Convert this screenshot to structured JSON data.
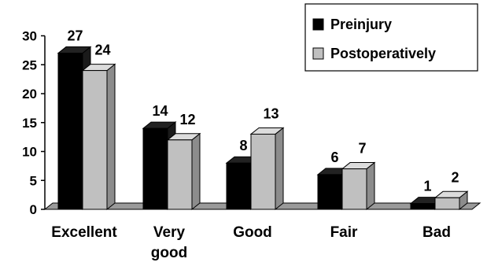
{
  "chart_data": {
    "type": "bar",
    "style": "3d-grouped",
    "categories": [
      "Excellent",
      "Very good",
      "Good",
      "Fair",
      "Bad"
    ],
    "category_lines": [
      [
        "Excellent"
      ],
      [
        "Very",
        "good"
      ],
      [
        "Good"
      ],
      [
        "Fair"
      ],
      [
        "Bad"
      ]
    ],
    "series": [
      {
        "name": "Preinjury",
        "values": [
          27,
          14,
          8,
          6,
          1
        ],
        "color": "#000000"
      },
      {
        "name": "Postoperatively",
        "values": [
          24,
          12,
          13,
          7,
          2
        ],
        "color": "#c0c0c0"
      }
    ],
    "title": "",
    "xlabel": "",
    "ylabel": "",
    "ylim": [
      0,
      30
    ],
    "yticks": [
      "0",
      "5",
      "10",
      "15",
      "20",
      "25",
      "30"
    ],
    "grid": false,
    "legend": {
      "placement": "top-right",
      "border": true
    },
    "data_labels": true
  }
}
